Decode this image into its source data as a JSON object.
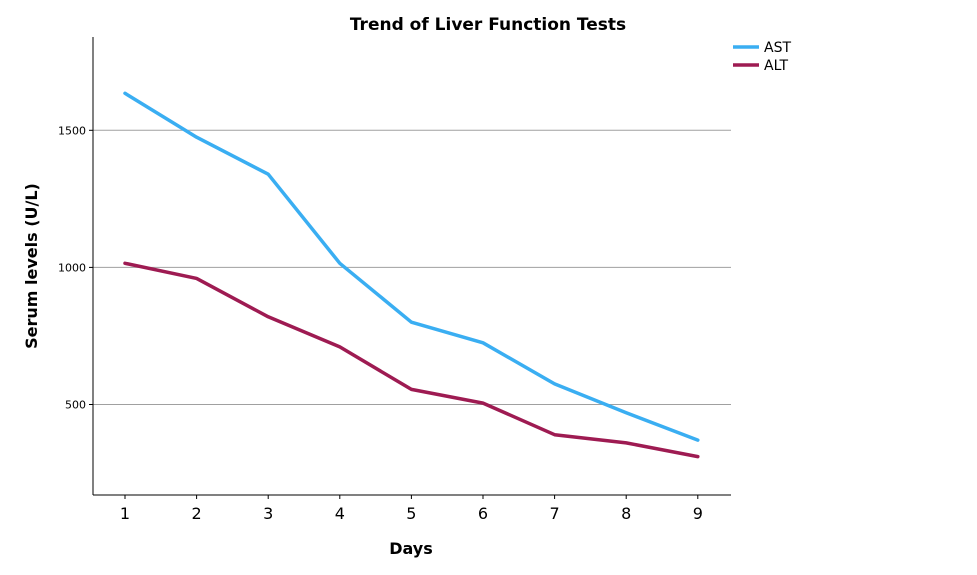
{
  "chart_data": {
    "type": "line",
    "title": "Trend of Liver Function Tests",
    "xlabel": "Days",
    "ylabel": "Serum levels (U/L)",
    "x": [
      "1",
      "2",
      "3",
      "4",
      "5",
      "6",
      "7",
      "8",
      "9"
    ],
    "y_ticks": [
      500,
      1000,
      1500
    ],
    "ylim": [
      170,
      1840
    ],
    "grid": "horizontal",
    "legend_position": "top-right",
    "series": [
      {
        "name": "AST",
        "color": "#3AAEF2",
        "values": [
          1635,
          1475,
          1340,
          1015,
          800,
          725,
          575,
          470,
          370
        ]
      },
      {
        "name": "ALT",
        "color": "#9E1B52",
        "values": [
          1015,
          960,
          820,
          710,
          555,
          505,
          390,
          360,
          310
        ]
      }
    ]
  }
}
